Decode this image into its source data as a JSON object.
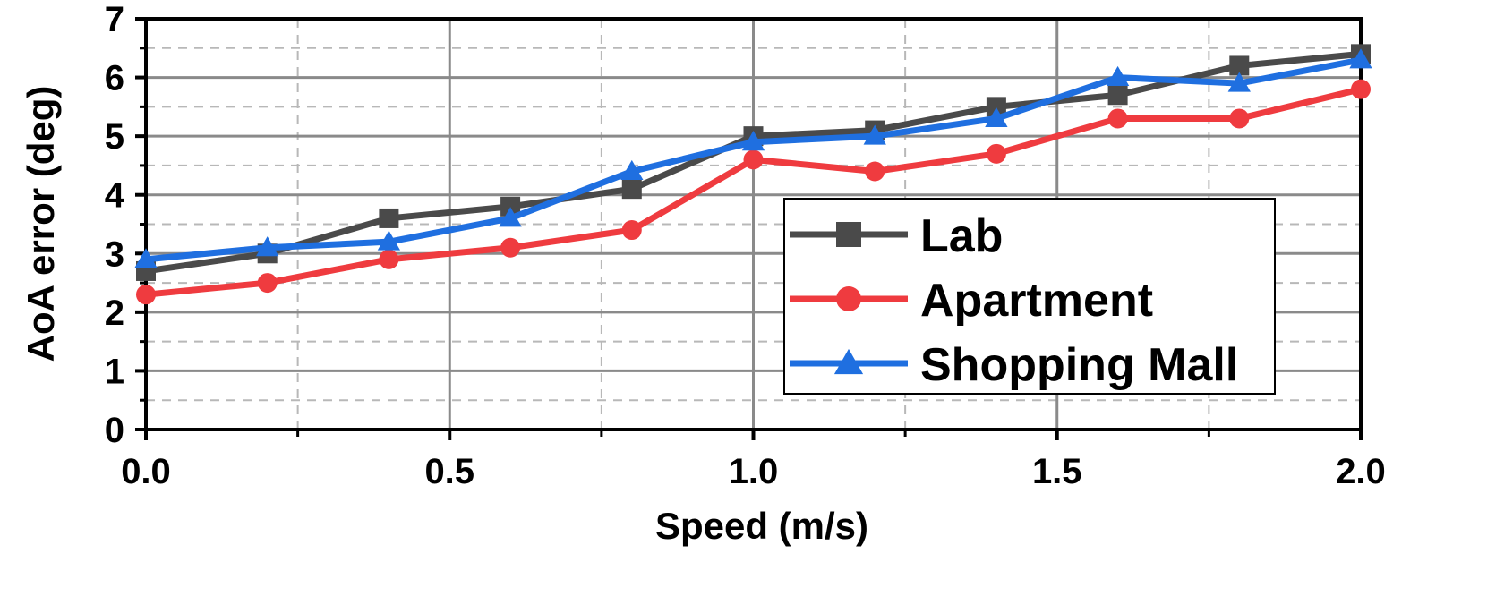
{
  "chart_data": {
    "type": "line",
    "xlabel": "Speed (m/s)",
    "ylabel": "AoA error (deg)",
    "xlim": [
      0.0,
      2.0
    ],
    "ylim": [
      0,
      7
    ],
    "x_ticks": [
      "0.0",
      "0.5",
      "1.0",
      "1.5",
      "2.0"
    ],
    "x_tick_values": [
      0.0,
      0.5,
      1.0,
      1.5,
      2.0
    ],
    "y_ticks": [
      "0",
      "1",
      "2",
      "3",
      "4",
      "5",
      "6",
      "7"
    ],
    "y_tick_values": [
      0,
      1,
      2,
      3,
      4,
      5,
      6,
      7
    ],
    "grid": true,
    "legend_position": "bottom-right",
    "x": [
      0.0,
      0.2,
      0.4,
      0.6,
      0.8,
      1.0,
      1.2,
      1.4,
      1.6,
      1.8,
      2.0
    ],
    "series": [
      {
        "name": "Lab",
        "color": "#4a4a4a",
        "marker": "square",
        "values": [
          2.7,
          3.0,
          3.6,
          3.8,
          4.1,
          5.0,
          5.1,
          5.5,
          5.7,
          6.2,
          6.4
        ]
      },
      {
        "name": "Apartment",
        "color": "#ef3b3f",
        "marker": "circle",
        "values": [
          2.3,
          2.5,
          2.9,
          3.1,
          3.4,
          4.6,
          4.4,
          4.7,
          5.3,
          5.3,
          5.8
        ]
      },
      {
        "name": "Shopping Mall",
        "color": "#1f6fe0",
        "marker": "triangle",
        "values": [
          2.9,
          3.1,
          3.2,
          3.6,
          4.4,
          4.9,
          5.0,
          5.3,
          6.0,
          5.9,
          6.3
        ]
      }
    ]
  }
}
